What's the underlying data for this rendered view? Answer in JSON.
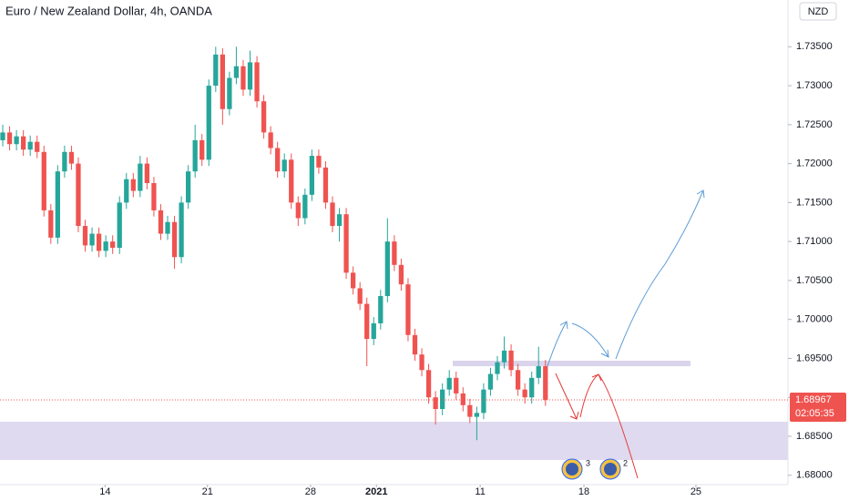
{
  "chart_data": {
    "type": "candlestick",
    "title": "Euro / New Zealand Dollar, 4h, OANDA",
    "currency": "NZD",
    "up_color": "#26a69a",
    "down_color": "#ef5350",
    "open": [
      1.723,
      1.724,
      1.7225,
      1.7235,
      1.7218,
      1.7228,
      1.7215,
      1.714,
      1.7105,
      1.719,
      1.7215,
      1.72,
      1.712,
      1.7095,
      1.711,
      1.7088,
      1.71,
      1.7092,
      1.715,
      1.718,
      1.7165,
      1.72,
      1.7175,
      1.714,
      1.711,
      1.7125,
      1.708,
      1.715,
      1.719,
      1.723,
      1.7205,
      1.73,
      1.734,
      1.727,
      1.731,
      1.7325,
      1.7295,
      1.733,
      1.728,
      1.724,
      1.722,
      1.719,
      1.7205,
      1.715,
      1.713,
      1.716,
      1.721,
      1.7195,
      1.715,
      1.712,
      1.7135,
      1.706,
      1.704,
      1.702,
      1.6975,
      1.6995,
      1.703,
      1.71,
      1.707,
      1.7045,
      1.698,
      1.6955,
      1.6935,
      1.69,
      1.6885,
      1.691,
      1.6925,
      1.6905,
      1.689,
      1.6875,
      1.688,
      1.691,
      1.693,
      1.6945,
      1.696,
      1.6935,
      1.691,
      1.69,
      1.6925,
      1.694
    ],
    "high": [
      1.725,
      1.7248,
      1.7243,
      1.7243,
      1.7236,
      1.7236,
      1.7223,
      1.7148,
      1.7198,
      1.7223,
      1.7223,
      1.7208,
      1.7128,
      1.7118,
      1.7118,
      1.7108,
      1.7108,
      1.7158,
      1.7188,
      1.7188,
      1.721,
      1.7208,
      1.7183,
      1.7148,
      1.7133,
      1.7133,
      1.7158,
      1.7198,
      1.725,
      1.7238,
      1.7308,
      1.735,
      1.7348,
      1.7318,
      1.735,
      1.7333,
      1.7345,
      1.7338,
      1.7288,
      1.7248,
      1.7228,
      1.7213,
      1.7213,
      1.7158,
      1.7168,
      1.7218,
      1.7218,
      1.7203,
      1.7158,
      1.7143,
      1.7143,
      1.7068,
      1.7048,
      1.7028,
      1.7003,
      1.7038,
      1.713,
      1.7108,
      1.7078,
      1.7053,
      1.6988,
      1.6963,
      1.6943,
      1.6908,
      1.6918,
      1.6935,
      1.6933,
      1.6913,
      1.6898,
      1.6888,
      1.6918,
      1.6938,
      1.6953,
      1.6978,
      1.6968,
      1.6943,
      1.6918,
      1.6933,
      1.6965,
      1.6948
    ],
    "low": [
      1.7222,
      1.7217,
      1.7217,
      1.721,
      1.721,
      1.7207,
      1.7132,
      1.7097,
      1.7097,
      1.7182,
      1.7192,
      1.7112,
      1.7087,
      1.7087,
      1.708,
      1.708,
      1.7084,
      1.7084,
      1.7142,
      1.7157,
      1.7157,
      1.7167,
      1.7132,
      1.7102,
      1.7102,
      1.7065,
      1.7072,
      1.7142,
      1.7182,
      1.7197,
      1.7197,
      1.7292,
      1.725,
      1.7262,
      1.7302,
      1.7287,
      1.7287,
      1.7272,
      1.7232,
      1.7212,
      1.7182,
      1.7182,
      1.7142,
      1.712,
      1.7122,
      1.7152,
      1.7187,
      1.7142,
      1.7112,
      1.71,
      1.7052,
      1.7032,
      1.7012,
      1.694,
      1.6967,
      1.6987,
      1.7022,
      1.7062,
      1.7037,
      1.6972,
      1.6947,
      1.6927,
      1.6892,
      1.6865,
      1.6877,
      1.6902,
      1.6897,
      1.6882,
      1.6867,
      1.6845,
      1.6872,
      1.6902,
      1.6922,
      1.6937,
      1.6927,
      1.6902,
      1.6892,
      1.6892,
      1.6917,
      1.6889
    ],
    "close": [
      1.724,
      1.7225,
      1.7235,
      1.7218,
      1.7228,
      1.7215,
      1.714,
      1.7105,
      1.719,
      1.7215,
      1.72,
      1.712,
      1.7095,
      1.711,
      1.7088,
      1.71,
      1.7092,
      1.715,
      1.718,
      1.7165,
      1.72,
      1.7175,
      1.714,
      1.711,
      1.7125,
      1.708,
      1.715,
      1.719,
      1.723,
      1.7205,
      1.73,
      1.734,
      1.727,
      1.731,
      1.7325,
      1.7295,
      1.733,
      1.728,
      1.724,
      1.722,
      1.719,
      1.7205,
      1.715,
      1.713,
      1.716,
      1.721,
      1.7195,
      1.715,
      1.712,
      1.7135,
      1.706,
      1.704,
      1.702,
      1.6975,
      1.6995,
      1.703,
      1.71,
      1.707,
      1.7045,
      1.698,
      1.6955,
      1.6935,
      1.69,
      1.6885,
      1.691,
      1.6925,
      1.6905,
      1.689,
      1.6875,
      1.688,
      1.691,
      1.693,
      1.6945,
      1.696,
      1.6935,
      1.691,
      1.69,
      1.6925,
      1.694,
      1.68967
    ],
    "xlim": [
      -0.4,
      114.3
    ],
    "xticks": [
      {
        "value": 14.9,
        "label": "14"
      },
      {
        "value": 29.8,
        "label": "21"
      },
      {
        "value": 44.8,
        "label": "28"
      },
      {
        "value": 54.4,
        "label": "2021"
      },
      {
        "value": 69.5,
        "label": "11"
      },
      {
        "value": 84.6,
        "label": "18"
      },
      {
        "value": 100.9,
        "label": "25"
      }
    ],
    "ylim": [
      1.6788,
      1.741
    ],
    "yticks": [
      {
        "value": 1.68,
        "label": "1.68000"
      },
      {
        "value": 1.685,
        "label": "1.68500"
      },
      {
        "value": 1.69,
        "label": "1.69000"
      },
      {
        "value": 1.695,
        "label": "1.69500"
      },
      {
        "value": 1.7,
        "label": "1.70000"
      },
      {
        "value": 1.705,
        "label": "1.70500"
      },
      {
        "value": 1.71,
        "label": "1.71000"
      },
      {
        "value": 1.715,
        "label": "1.71500"
      },
      {
        "value": 1.72,
        "label": "1.72000"
      },
      {
        "value": 1.725,
        "label": "1.72500"
      },
      {
        "value": 1.73,
        "label": "1.73000"
      },
      {
        "value": 1.735,
        "label": "1.73500"
      }
    ],
    "last_price": 1.68967,
    "countdown": "02:05:35",
    "events": [
      "3",
      "2"
    ]
  }
}
